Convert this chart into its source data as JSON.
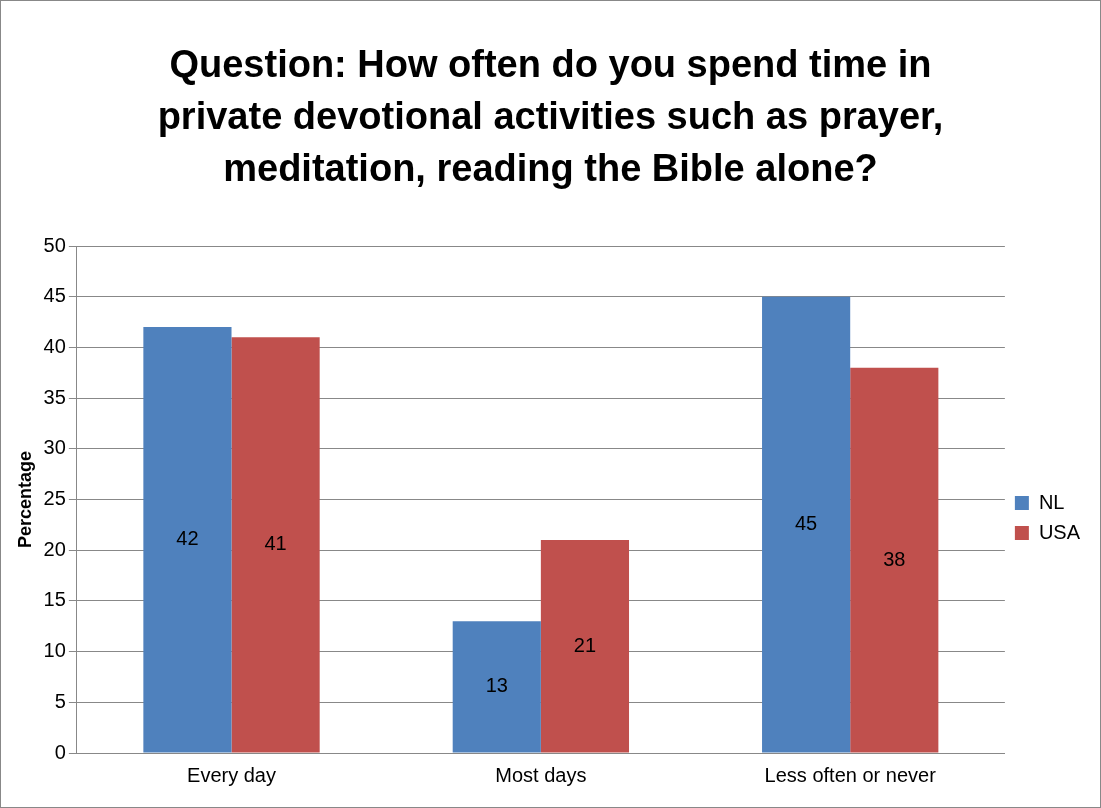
{
  "chart_data": {
    "type": "bar",
    "title": "Question: How often do you spend time in private devotional activities such as prayer, meditation, reading the Bible alone?",
    "ylabel": "Percentage",
    "categories": [
      "Every day",
      "Most days",
      "Less often or never"
    ],
    "series": [
      {
        "name": "NL",
        "color": "#4f81bd",
        "values": [
          42,
          13,
          45
        ]
      },
      {
        "name": "USA",
        "color": "#c0504d",
        "values": [
          41,
          21,
          38
        ]
      }
    ],
    "ylim": [
      0,
      50
    ],
    "yticks": [
      0,
      5,
      10,
      15,
      20,
      25,
      30,
      35,
      40,
      45,
      50
    ],
    "grid": "y",
    "legend": "right",
    "data_labels": true
  }
}
